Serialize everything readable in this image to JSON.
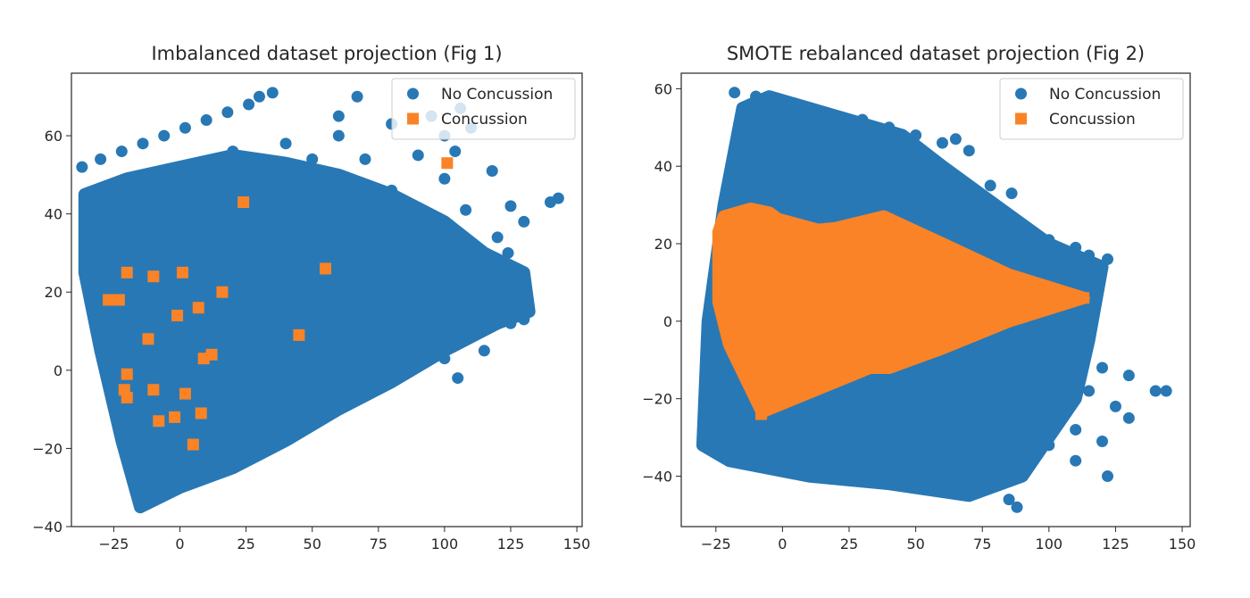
{
  "colors": {
    "no_concussion": "#2878b5",
    "concussion": "#f98326",
    "axis": "#262626"
  },
  "chart_data": [
    {
      "type": "scatter",
      "title": "Imbalanced dataset projection (Fig 1)",
      "xlabel": "",
      "ylabel": "",
      "xlim": [
        -41,
        152
      ],
      "ylim": [
        -40,
        76
      ],
      "xticks": [
        -25,
        0,
        25,
        50,
        75,
        100,
        125,
        150
      ],
      "xtick_labels": [
        "−25",
        "0",
        "25",
        "50",
        "75",
        "100",
        "125",
        "150"
      ],
      "yticks": [
        -40,
        -20,
        0,
        20,
        40,
        60
      ],
      "ytick_labels": [
        "−40",
        "−20",
        "0",
        "20",
        "40",
        "60"
      ],
      "legend_position": "top-right",
      "series": [
        {
          "name": "No Concussion",
          "marker": "circle",
          "color": "#2878b5",
          "region": [
            [
              -36,
              45
            ],
            [
              -36,
              25
            ],
            [
              -30,
              5
            ],
            [
              -22,
              -18
            ],
            [
              -15,
              -35
            ],
            [
              0,
              -30
            ],
            [
              20,
              -25
            ],
            [
              40,
              -18
            ],
            [
              60,
              -10
            ],
            [
              80,
              -3
            ],
            [
              100,
              5
            ],
            [
              120,
              12
            ],
            [
              132,
              15
            ],
            [
              130,
              25
            ],
            [
              115,
              30
            ],
            [
              100,
              38
            ],
            [
              80,
              45
            ],
            [
              60,
              50
            ],
            [
              40,
              53
            ],
            [
              20,
              55
            ],
            [
              0,
              52
            ],
            [
              -20,
              49
            ]
          ],
          "points": [
            [
              -37,
              52
            ],
            [
              -30,
              54
            ],
            [
              -22,
              56
            ],
            [
              -14,
              58
            ],
            [
              -6,
              60
            ],
            [
              2,
              62
            ],
            [
              10,
              64
            ],
            [
              18,
              66
            ],
            [
              26,
              68
            ],
            [
              30,
              70
            ],
            [
              35,
              71
            ],
            [
              20,
              56
            ],
            [
              40,
              58
            ],
            [
              60,
              60
            ],
            [
              80,
              63
            ],
            [
              95,
              65
            ],
            [
              106,
              67
            ],
            [
              60,
              65
            ],
            [
              67,
              70
            ],
            [
              50,
              54
            ],
            [
              70,
              54
            ],
            [
              90,
              55
            ],
            [
              104,
              56
            ],
            [
              60,
              43
            ],
            [
              80,
              46
            ],
            [
              100,
              49
            ],
            [
              118,
              51
            ],
            [
              70,
              37
            ],
            [
              90,
              39
            ],
            [
              108,
              41
            ],
            [
              125,
              42
            ],
            [
              75,
              29
            ],
            [
              100,
              32
            ],
            [
              120,
              34
            ],
            [
              130,
              38
            ],
            [
              143,
              44
            ],
            [
              140,
              43
            ],
            [
              80,
              25
            ],
            [
              100,
              27
            ],
            [
              115,
              28
            ],
            [
              124,
              30
            ],
            [
              90,
              17
            ],
            [
              110,
              20
            ],
            [
              125,
              22
            ],
            [
              90,
              8
            ],
            [
              110,
              10
            ],
            [
              125,
              12
            ],
            [
              130,
              13
            ],
            [
              100,
              3
            ],
            [
              115,
              5
            ],
            [
              105,
              -2
            ],
            [
              100,
              60
            ],
            [
              110,
              62
            ]
          ]
        },
        {
          "name": "Concussion",
          "marker": "square",
          "color": "#f98326",
          "points": [
            [
              101,
              53
            ],
            [
              24,
              43
            ],
            [
              55,
              26
            ],
            [
              -20,
              25
            ],
            [
              -10,
              24
            ],
            [
              1,
              25
            ],
            [
              16,
              20
            ],
            [
              -23,
              18
            ],
            [
              -27,
              18
            ],
            [
              7,
              16
            ],
            [
              -1,
              14
            ],
            [
              -12,
              8
            ],
            [
              45,
              9
            ],
            [
              9,
              3
            ],
            [
              12,
              4
            ],
            [
              -20,
              -1
            ],
            [
              -21,
              -5
            ],
            [
              -20,
              -7
            ],
            [
              -10,
              -5
            ],
            [
              2,
              -6
            ],
            [
              -8,
              -13
            ],
            [
              -2,
              -12
            ],
            [
              8,
              -11
            ],
            [
              5,
              -19
            ]
          ]
        }
      ]
    },
    {
      "type": "scatter",
      "title": "SMOTE rebalanced dataset projection (Fig 2)",
      "xlabel": "",
      "ylabel": "",
      "xlim": [
        -38,
        153
      ],
      "ylim": [
        -53,
        64
      ],
      "xticks": [
        -25,
        0,
        25,
        50,
        75,
        100,
        125,
        150
      ],
      "xtick_labels": [
        "−25",
        "0",
        "25",
        "50",
        "75",
        "100",
        "125",
        "150"
      ],
      "yticks": [
        -40,
        -20,
        0,
        20,
        40,
        60
      ],
      "ytick_labels": [
        "−40",
        "−20",
        "0",
        "20",
        "40",
        "60"
      ],
      "legend_position": "top-right",
      "series": [
        {
          "name": "No Concussion",
          "marker": "circle",
          "color": "#2878b5",
          "region": [
            [
              -30,
              -32
            ],
            [
              -28,
              0
            ],
            [
              -22,
              30
            ],
            [
              -15,
              55
            ],
            [
              -5,
              58
            ],
            [
              20,
              53
            ],
            [
              45,
              48
            ],
            [
              60,
              40
            ],
            [
              80,
              30
            ],
            [
              100,
              20
            ],
            [
              120,
              14
            ],
            [
              115,
              -5
            ],
            [
              110,
              -20
            ],
            [
              100,
              -30
            ],
            [
              90,
              -40
            ],
            [
              70,
              -45
            ],
            [
              40,
              -42
            ],
            [
              10,
              -40
            ],
            [
              -20,
              -36
            ]
          ],
          "points": [
            [
              -18,
              59
            ],
            [
              -10,
              58
            ],
            [
              0,
              56
            ],
            [
              10,
              55
            ],
            [
              20,
              53
            ],
            [
              30,
              52
            ],
            [
              40,
              50
            ],
            [
              50,
              48
            ],
            [
              60,
              46
            ],
            [
              65,
              47
            ],
            [
              70,
              44
            ],
            [
              78,
              35
            ],
            [
              86,
              33
            ],
            [
              70,
              26
            ],
            [
              85,
              24
            ],
            [
              100,
              21
            ],
            [
              110,
              19
            ],
            [
              115,
              17
            ],
            [
              122,
              16
            ],
            [
              105,
              5
            ],
            [
              115,
              6
            ],
            [
              100,
              -8
            ],
            [
              110,
              -10
            ],
            [
              120,
              -12
            ],
            [
              130,
              -14
            ],
            [
              144,
              -18
            ],
            [
              140,
              -18
            ],
            [
              100,
              -15
            ],
            [
              115,
              -18
            ],
            [
              125,
              -22
            ],
            [
              130,
              -25
            ],
            [
              110,
              -28
            ],
            [
              120,
              -31
            ],
            [
              100,
              -32
            ],
            [
              110,
              -36
            ],
            [
              122,
              -40
            ],
            [
              90,
              -38
            ],
            [
              80,
              -42
            ],
            [
              85,
              -46
            ],
            [
              88,
              -48
            ],
            [
              70,
              -36
            ],
            [
              60,
              -40
            ],
            [
              80,
              -25
            ],
            [
              90,
              -28
            ]
          ]
        },
        {
          "name": "Concussion",
          "marker": "square",
          "color": "#f98326",
          "region": [
            [
              -24,
              23
            ],
            [
              -22,
              27
            ],
            [
              -12,
              29
            ],
            [
              -5,
              28
            ],
            [
              5,
              23
            ],
            [
              20,
              24
            ],
            [
              38,
              27
            ],
            [
              60,
              20
            ],
            [
              85,
              12
            ],
            [
              113,
              6
            ],
            [
              85,
              0
            ],
            [
              60,
              -7
            ],
            [
              40,
              -12
            ],
            [
              20,
              -12
            ],
            [
              5,
              -19
            ],
            [
              -8,
              -23
            ],
            [
              -20,
              -6
            ],
            [
              -24,
              5
            ]
          ],
          "points": [
            [
              -22,
              22
            ],
            [
              -8,
              28
            ],
            [
              -18,
              14
            ],
            [
              -10,
              18
            ],
            [
              -15,
              0
            ],
            [
              -5,
              5
            ],
            [
              5,
              10
            ],
            [
              15,
              16
            ],
            [
              28,
              20
            ],
            [
              38,
              25
            ],
            [
              48,
              15
            ],
            [
              60,
              10
            ],
            [
              75,
              6
            ],
            [
              95,
              5
            ],
            [
              110,
              6
            ],
            [
              113,
              6
            ],
            [
              60,
              0
            ],
            [
              45,
              -2
            ],
            [
              30,
              -5
            ],
            [
              20,
              -9
            ],
            [
              10,
              -12
            ],
            [
              -2,
              -15
            ],
            [
              -8,
              -20
            ],
            [
              -8,
              -24
            ]
          ]
        }
      ]
    }
  ]
}
